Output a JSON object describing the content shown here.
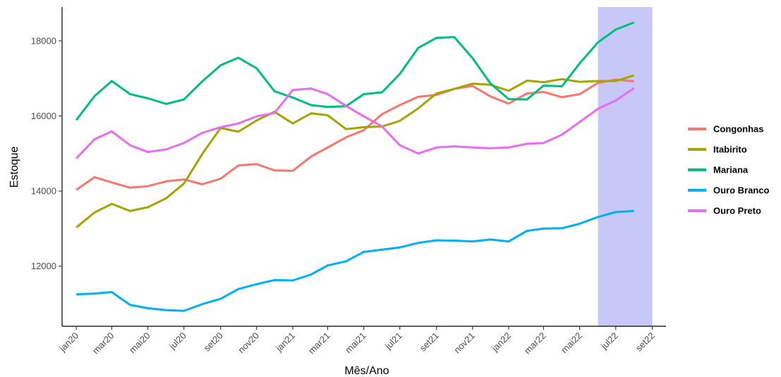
{
  "chart_data": {
    "type": "line",
    "title": "",
    "xlabel": "Mês/Ano",
    "ylabel": "Estoque",
    "ylim": [
      10400,
      18900
    ],
    "yticks": [
      12000,
      14000,
      16000,
      18000
    ],
    "y_tick_labels": [
      "12000",
      "14000",
      "16000",
      "18000"
    ],
    "x": [
      "2020-01",
      "2020-02",
      "2020-03",
      "2020-04",
      "2020-05",
      "2020-06",
      "2020-07",
      "2020-08",
      "2020-09",
      "2020-10",
      "2020-11",
      "2020-12",
      "2021-01",
      "2021-02",
      "2021-03",
      "2021-04",
      "2021-05",
      "2021-06",
      "2021-07",
      "2021-08",
      "2021-09",
      "2021-10",
      "2021-11",
      "2021-12",
      "2022-01",
      "2022-02",
      "2022-03",
      "2022-04",
      "2022-05",
      "2022-06",
      "2022-07",
      "2022-08"
    ],
    "xlim": [
      "2019-12-08",
      "2022-09-24"
    ],
    "x_ticks": [
      "2020-01",
      "2020-03",
      "2020-05",
      "2020-07",
      "2020-09",
      "2020-11",
      "2021-01",
      "2021-03",
      "2021-05",
      "2021-07",
      "2021-09",
      "2021-11",
      "2022-01",
      "2022-03",
      "2022-05",
      "2022-07",
      "2022-09"
    ],
    "x_tick_labels": [
      "jan20",
      "mar20",
      "mai20",
      "jul20",
      "set20",
      "nov20",
      "jan21",
      "mar21",
      "mai21",
      "jul21",
      "set21",
      "nov21",
      "jan22",
      "mar22",
      "mai22",
      "jul22",
      "set22"
    ],
    "highlight": {
      "from": "2022-06",
      "to": "2022-09",
      "color": "#c8c8f8"
    },
    "grid": false,
    "legend_position": "right",
    "series": [
      {
        "name": "Congonhas",
        "color": "#F8766D",
        "values": [
          14030,
          14370,
          14230,
          14090,
          14130,
          14260,
          14310,
          14180,
          14330,
          14680,
          14720,
          14550,
          14540,
          14920,
          15160,
          15430,
          15620,
          16050,
          16290,
          16510,
          16560,
          16720,
          16800,
          16520,
          16330,
          16600,
          16640,
          16500,
          16580,
          16880,
          16970,
          16920
        ]
      },
      {
        "name": "Itabirito",
        "color": "#A3A500",
        "values": [
          13030,
          13430,
          13660,
          13470,
          13570,
          13810,
          14200,
          14990,
          15680,
          15580,
          15880,
          16110,
          15800,
          16070,
          16020,
          15650,
          15700,
          15720,
          15870,
          16200,
          16600,
          16720,
          16860,
          16830,
          16670,
          16940,
          16900,
          16980,
          16910,
          16930,
          16930,
          17080
        ]
      },
      {
        "name": "Mariana",
        "color": "#00BF7D",
        "values": [
          15890,
          16530,
          16930,
          16580,
          16470,
          16320,
          16440,
          16920,
          17350,
          17550,
          17270,
          16660,
          16490,
          16290,
          16240,
          16260,
          16580,
          16630,
          17120,
          17810,
          18080,
          18100,
          17540,
          16870,
          16450,
          16440,
          16810,
          16790,
          17400,
          17960,
          18300,
          18490
        ]
      },
      {
        "name": "Ouro Branco",
        "color": "#00B0F6",
        "values": [
          11250,
          11270,
          11310,
          10970,
          10880,
          10830,
          10810,
          10990,
          11130,
          11390,
          11520,
          11630,
          11620,
          11780,
          12020,
          12130,
          12380,
          12440,
          12500,
          12620,
          12690,
          12680,
          12660,
          12710,
          12660,
          12940,
          13000,
          13010,
          13130,
          13310,
          13440,
          13470
        ]
      },
      {
        "name": "Ouro Preto",
        "color": "#E76BF3",
        "values": [
          14870,
          15380,
          15590,
          15220,
          15040,
          15110,
          15280,
          15550,
          15700,
          15800,
          15990,
          16080,
          16690,
          16730,
          16580,
          16270,
          15990,
          15720,
          15220,
          15000,
          15160,
          15190,
          15160,
          15140,
          15160,
          15260,
          15280,
          15500,
          15840,
          16190,
          16410,
          16740
        ]
      }
    ]
  }
}
